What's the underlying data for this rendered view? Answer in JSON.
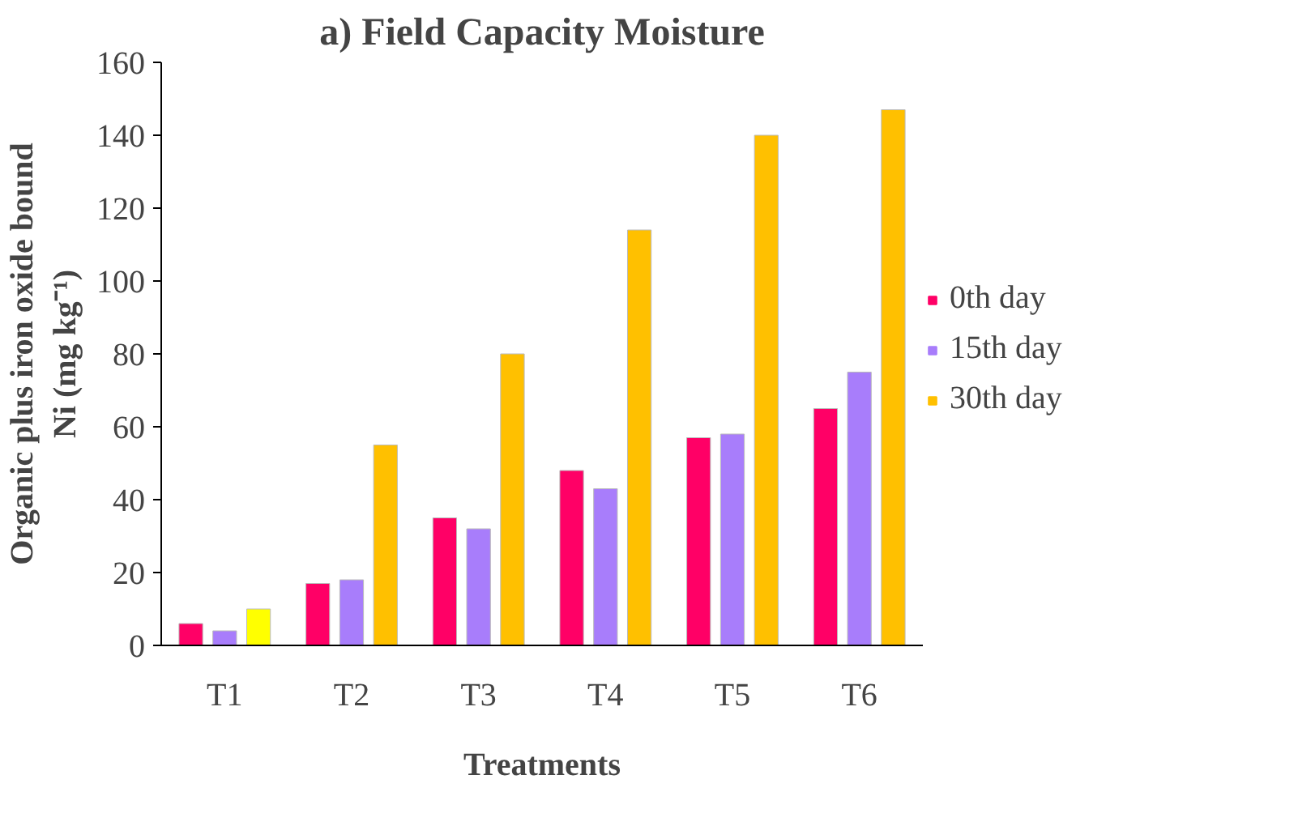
{
  "chart_data": {
    "type": "bar",
    "title": "a) Field Capacity Moisture",
    "xlabel": "Treatments",
    "ylabel": "Organic plus iron oxide bound\nNi (mg kg⁻¹)",
    "categories": [
      "T1",
      "T2",
      "T3",
      "T4",
      "T5",
      "T6"
    ],
    "series": [
      {
        "name": "0th day",
        "color": "#ff0066",
        "values": [
          6,
          17,
          35,
          48,
          57,
          65
        ]
      },
      {
        "name": "15th day",
        "color": "#a87dfb",
        "values": [
          4,
          18,
          32,
          43,
          58,
          75
        ]
      },
      {
        "name": "30th day",
        "color": "#ffc000",
        "colors": [
          "#ffff00",
          "#ffc000",
          "#ffc000",
          "#ffc000",
          "#ffc000",
          "#ffc000"
        ],
        "values": [
          10,
          55,
          80,
          114,
          140,
          147
        ]
      }
    ],
    "ylim": [
      0,
      160
    ],
    "yticks": [
      0,
      20,
      40,
      60,
      80,
      100,
      120,
      140,
      160
    ],
    "grid": false,
    "legend": "right"
  }
}
